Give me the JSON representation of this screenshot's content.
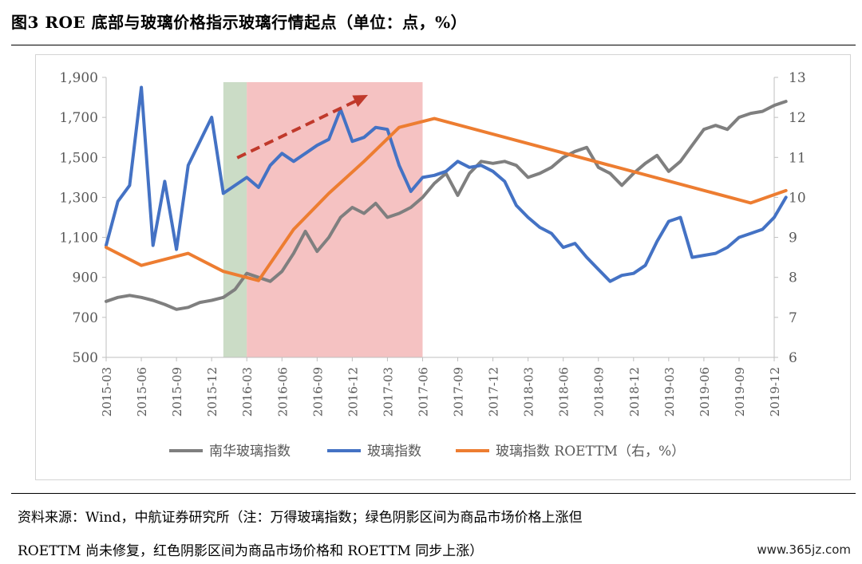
{
  "title": "图3 ROE 底部与玻璃价格指示玻璃行情起点（单位：点，%）",
  "note_line1": "资料来源：Wind，中航证券研究所（注：万得玻璃指数；绿色阴影区间为商品市场价格上涨但",
  "note_line2": "ROETTM 尚未修复，红色阴影区间为商品市场价格和 ROETTM 同步上涨）",
  "watermark": "www.365jz.com",
  "colors": {
    "nanhua": "#7f7f7f",
    "glass_index": "#4472c4",
    "roettm": "#ed7d31",
    "green_shade": "#a9c4a0",
    "red_shade": "#ef9a9a",
    "arrow": "#c0392b"
  },
  "chart_data": {
    "type": "line",
    "x_ticks": [
      "2015-03",
      "2015-06",
      "2015-09",
      "2015-12",
      "2016-03",
      "2016-06",
      "2016-09",
      "2016-12",
      "2017-03",
      "2017-06",
      "2017-09",
      "2017-12",
      "2018-03",
      "2018-06",
      "2018-09",
      "2018-12",
      "2019-03",
      "2019-06",
      "2019-09",
      "2019-12"
    ],
    "y_left": {
      "ticks": [
        "500",
        "700",
        "900",
        "1,100",
        "1,300",
        "1,500",
        "1,700",
        "1,900"
      ],
      "range": [
        500,
        1900
      ]
    },
    "y_right": {
      "ticks": [
        "6",
        "7",
        "8",
        "9",
        "10",
        "11",
        "12",
        "13"
      ],
      "range": [
        6,
        13
      ]
    },
    "shaded_regions": [
      {
        "type": "green",
        "start": "2016-01",
        "end": "2016-03"
      },
      {
        "type": "red",
        "start": "2016-03",
        "end": "2017-06"
      }
    ],
    "trend_arrow": {
      "from": [
        "2016-03",
        1510
      ],
      "to": [
        "2017-01",
        1820
      ]
    },
    "series": [
      {
        "name": "南华玻璃指数",
        "axis": "left",
        "points": [
          [
            "2015-03",
            780
          ],
          [
            "2015-04",
            800
          ],
          [
            "2015-05",
            810
          ],
          [
            "2015-06",
            800
          ],
          [
            "2015-07",
            785
          ],
          [
            "2015-08",
            765
          ],
          [
            "2015-09",
            740
          ],
          [
            "2015-10",
            750
          ],
          [
            "2015-11",
            775
          ],
          [
            "2015-12",
            785
          ],
          [
            "2016-01",
            800
          ],
          [
            "2016-02",
            840
          ],
          [
            "2016-03",
            920
          ],
          [
            "2016-04",
            900
          ],
          [
            "2016-05",
            880
          ],
          [
            "2016-06",
            930
          ],
          [
            "2016-07",
            1020
          ],
          [
            "2016-08",
            1130
          ],
          [
            "2016-09",
            1030
          ],
          [
            "2016-10",
            1100
          ],
          [
            "2016-11",
            1200
          ],
          [
            "2016-12",
            1250
          ],
          [
            "2017-01",
            1220
          ],
          [
            "2017-02",
            1270
          ],
          [
            "2017-03",
            1200
          ],
          [
            "2017-04",
            1220
          ],
          [
            "2017-05",
            1250
          ],
          [
            "2017-06",
            1300
          ],
          [
            "2017-07",
            1370
          ],
          [
            "2017-08",
            1420
          ],
          [
            "2017-09",
            1310
          ],
          [
            "2017-10",
            1420
          ],
          [
            "2017-11",
            1480
          ],
          [
            "2017-12",
            1470
          ],
          [
            "2018-01",
            1480
          ],
          [
            "2018-02",
            1460
          ],
          [
            "2018-03",
            1400
          ],
          [
            "2018-04",
            1420
          ],
          [
            "2018-05",
            1450
          ],
          [
            "2018-06",
            1500
          ],
          [
            "2018-07",
            1530
          ],
          [
            "2018-08",
            1550
          ],
          [
            "2018-09",
            1450
          ],
          [
            "2018-10",
            1420
          ],
          [
            "2018-11",
            1360
          ],
          [
            "2018-12",
            1420
          ],
          [
            "2019-01",
            1470
          ],
          [
            "2019-02",
            1510
          ],
          [
            "2019-03",
            1430
          ],
          [
            "2019-04",
            1480
          ],
          [
            "2019-05",
            1560
          ],
          [
            "2019-06",
            1640
          ],
          [
            "2019-07",
            1660
          ],
          [
            "2019-08",
            1640
          ],
          [
            "2019-09",
            1700
          ],
          [
            "2019-10",
            1720
          ],
          [
            "2019-11",
            1730
          ],
          [
            "2019-12",
            1760
          ],
          [
            "2020-01",
            1780
          ]
        ]
      },
      {
        "name": "玻璃指数",
        "axis": "left",
        "points": [
          [
            "2015-03",
            1060
          ],
          [
            "2015-04",
            1280
          ],
          [
            "2015-05",
            1360
          ],
          [
            "2015-06",
            1850
          ],
          [
            "2015-07",
            1060
          ],
          [
            "2015-08",
            1380
          ],
          [
            "2015-09",
            1040
          ],
          [
            "2015-10",
            1460
          ],
          [
            "2015-11",
            1580
          ],
          [
            "2015-12",
            1700
          ],
          [
            "2016-01",
            1320
          ],
          [
            "2016-02",
            1360
          ],
          [
            "2016-03",
            1400
          ],
          [
            "2016-04",
            1350
          ],
          [
            "2016-05",
            1460
          ],
          [
            "2016-06",
            1520
          ],
          [
            "2016-07",
            1480
          ],
          [
            "2016-08",
            1520
          ],
          [
            "2016-09",
            1560
          ],
          [
            "2016-10",
            1590
          ],
          [
            "2016-11",
            1740
          ],
          [
            "2016-12",
            1580
          ],
          [
            "2017-01",
            1600
          ],
          [
            "2017-02",
            1650
          ],
          [
            "2017-03",
            1640
          ],
          [
            "2017-04",
            1460
          ],
          [
            "2017-05",
            1330
          ],
          [
            "2017-06",
            1400
          ],
          [
            "2017-07",
            1410
          ],
          [
            "2017-08",
            1430
          ],
          [
            "2017-09",
            1480
          ],
          [
            "2017-10",
            1450
          ],
          [
            "2017-11",
            1460
          ],
          [
            "2017-12",
            1430
          ],
          [
            "2018-01",
            1380
          ],
          [
            "2018-02",
            1260
          ],
          [
            "2018-03",
            1200
          ],
          [
            "2018-04",
            1150
          ],
          [
            "2018-05",
            1120
          ],
          [
            "2018-06",
            1050
          ],
          [
            "2018-07",
            1070
          ],
          [
            "2018-08",
            1000
          ],
          [
            "2018-09",
            940
          ],
          [
            "2018-10",
            880
          ],
          [
            "2018-11",
            910
          ],
          [
            "2018-12",
            920
          ],
          [
            "2019-01",
            960
          ],
          [
            "2019-02",
            1080
          ],
          [
            "2019-03",
            1180
          ],
          [
            "2019-04",
            1200
          ],
          [
            "2019-05",
            1000
          ],
          [
            "2019-06",
            1010
          ],
          [
            "2019-07",
            1020
          ],
          [
            "2019-08",
            1050
          ],
          [
            "2019-09",
            1100
          ],
          [
            "2019-10",
            1120
          ],
          [
            "2019-11",
            1140
          ],
          [
            "2019-12",
            1200
          ],
          [
            "2020-01",
            1300
          ]
        ]
      },
      {
        "name": "玻璃指数 ROETTM（右，%）",
        "axis": "right",
        "points": [
          [
            "2015-03",
            8.75
          ],
          [
            "2015-06",
            8.3
          ],
          [
            "2015-10",
            8.6
          ],
          [
            "2016-01",
            8.15
          ],
          [
            "2016-04",
            7.92
          ],
          [
            "2016-07",
            9.2
          ],
          [
            "2016-10",
            10.1
          ],
          [
            "2017-01",
            10.9
          ],
          [
            "2017-04",
            11.75
          ],
          [
            "2017-07",
            11.97
          ],
          [
            "2019-10",
            9.86
          ],
          [
            "2020-01",
            10.17
          ]
        ]
      }
    ]
  }
}
